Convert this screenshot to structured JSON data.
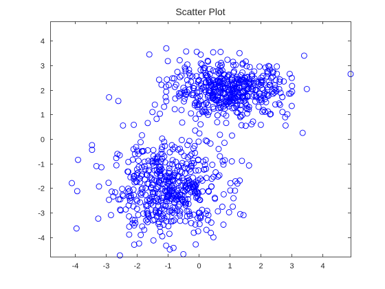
{
  "chart_data": {
    "type": "scatter",
    "title": "Scatter Plot",
    "xlabel": "",
    "ylabel": "",
    "xlim": [
      -4.8,
      4.9
    ],
    "ylim": [
      -4.8,
      4.8
    ],
    "xticks": [
      "-4",
      "-3",
      "-2",
      "-1",
      "0",
      "1",
      "2",
      "3",
      "4"
    ],
    "yticks": [
      "4",
      "3",
      "2",
      "1",
      "0",
      "-1",
      "-2",
      "-3",
      "-4"
    ],
    "xtick_values": [
      -4,
      -3,
      -2,
      -1,
      0,
      1,
      2,
      3,
      4
    ],
    "ytick_values": [
      4,
      3,
      2,
      1,
      0,
      -1,
      -2,
      -3,
      -4
    ],
    "grid": false,
    "legend": "none",
    "marker": "circle",
    "marker_color": "#0000ff",
    "axis_color": "#262626",
    "series": [
      {
        "clusters": [
          {
            "center": [
              -1.0,
              -2.0
            ],
            "spread": [
              0.9,
              0.95
            ],
            "count": 500
          },
          {
            "center": [
              1.0,
              2.0
            ],
            "spread": [
              0.95,
              0.55
            ],
            "count": 480
          }
        ],
        "points": [
          [
            -4.1,
            -1.8
          ],
          [
            -3.9,
            -0.85
          ],
          [
            -3.45,
            -0.25
          ],
          [
            -2.45,
            0.55
          ],
          [
            -2.6,
            1.55
          ],
          [
            -2.9,
            1.7
          ],
          [
            -2.55,
            -4.75
          ],
          [
            -0.5,
            -4.7
          ],
          [
            -0.1,
            -4.3
          ],
          [
            4.9,
            2.65
          ],
          [
            3.4,
            3.4
          ],
          [
            3.35,
            0.25
          ],
          [
            2.8,
            0.55
          ],
          [
            1.7,
            0.6
          ],
          [
            -1.65,
            0.65
          ],
          [
            -1.5,
            1.1
          ],
          [
            -1.05,
            3.7
          ],
          [
            -1.6,
            3.45
          ],
          [
            0.7,
            3.55
          ],
          [
            -3.95,
            -3.65
          ]
        ]
      }
    ]
  }
}
